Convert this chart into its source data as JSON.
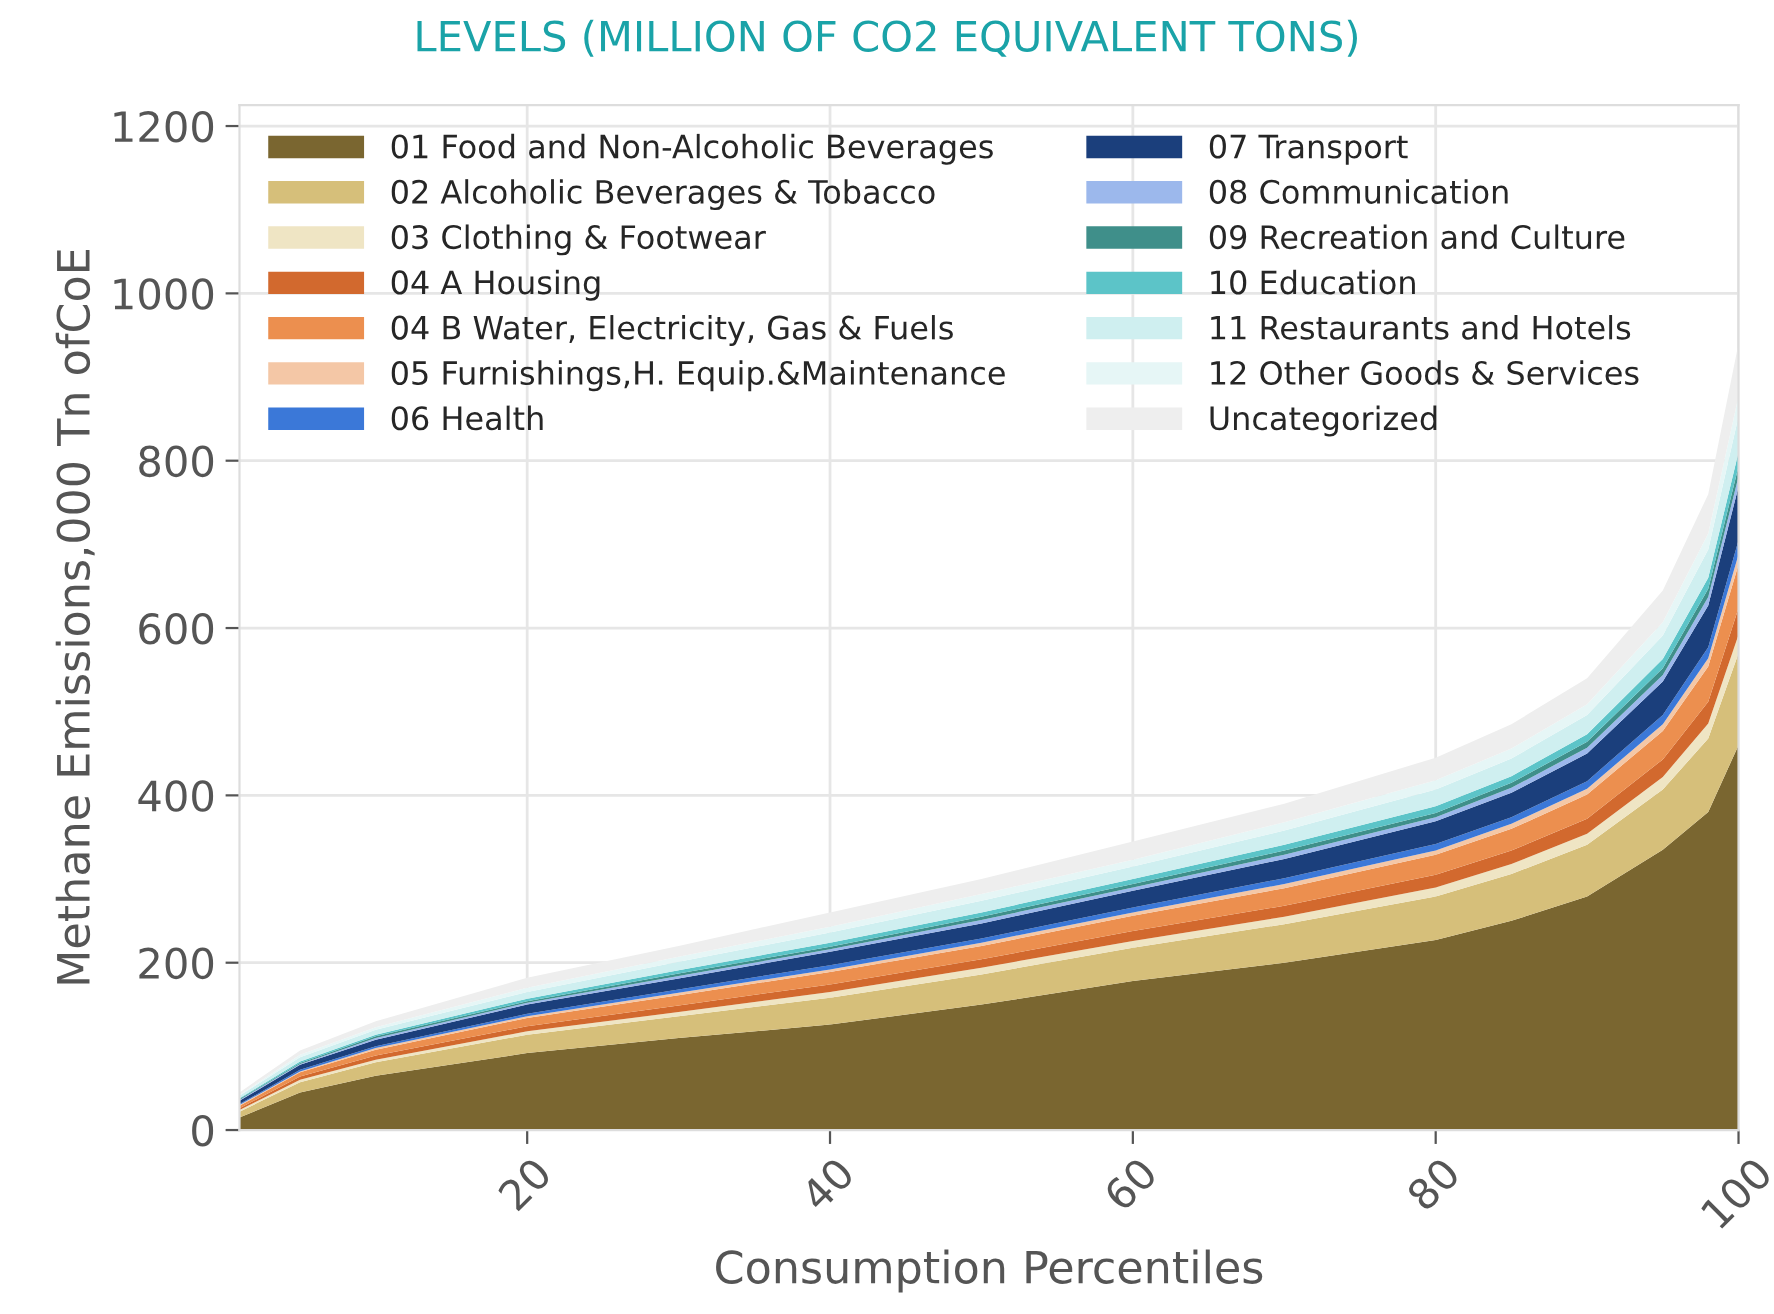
{
  "chart_data": {
    "type": "area",
    "stacked": true,
    "title": "LEVELS (MILLION OF CO2 EQUIVALENT TONS)",
    "xlabel": "Consumption Percentiles",
    "ylabel": "Methane Emissions,000 Tn ofCoE",
    "x": [
      1,
      5,
      10,
      20,
      30,
      40,
      50,
      60,
      70,
      80,
      85,
      90,
      95,
      98,
      100
    ],
    "xlim": [
      1,
      100
    ],
    "xticks": [
      20,
      40,
      60,
      80,
      100
    ],
    "ylim": [
      0,
      1225
    ],
    "yticks": [
      0,
      200,
      400,
      600,
      800,
      1000,
      1200
    ],
    "grid": true,
    "legend": "top left",
    "series": [
      {
        "name": "01 Food and Non-Alcoholic Beverages",
        "color": "#7a6630",
        "values": [
          15,
          45,
          65,
          92,
          110,
          126,
          150,
          178,
          200,
          227,
          250,
          279,
          335,
          380,
          460
        ]
      },
      {
        "name": "02 Alcoholic Beverages & Tobacco",
        "color": "#d6bf7a",
        "values": [
          7,
          12,
          16,
          22,
          26,
          32,
          36,
          40,
          46,
          52,
          56,
          62,
          72,
          88,
          110
        ]
      },
      {
        "name": "03 Clothing & Footwear",
        "color": "#efe5c4",
        "values": [
          2,
          3,
          3,
          4,
          5,
          7,
          8,
          8,
          9,
          11,
          12,
          13,
          15,
          18,
          22
        ]
      },
      {
        "name": "04 A Housing",
        "color": "#d2692e",
        "values": [
          2,
          4,
          5,
          6,
          8,
          9,
          10,
          12,
          13,
          15,
          16,
          18,
          21,
          26,
          32
        ]
      },
      {
        "name": "04 B Water, Electricity, Gas & Fuels",
        "color": "#ec8f4f",
        "values": [
          3,
          5,
          7,
          10,
          12,
          15,
          16,
          18,
          21,
          24,
          26,
          29,
          34,
          42,
          52
        ]
      },
      {
        "name": "05 Furnishings,H. Equip.&Maintenance",
        "color": "#f4c7a6",
        "values": [
          1,
          1,
          2,
          2,
          3,
          3,
          4,
          4,
          5,
          5,
          6,
          7,
          8,
          10,
          12
        ]
      },
      {
        "name": "06 Health",
        "color": "#3b78d8",
        "values": [
          1,
          2,
          2,
          3,
          4,
          5,
          5,
          6,
          7,
          8,
          8,
          9,
          11,
          13,
          17
        ]
      },
      {
        "name": "07 Transport",
        "color": "#1b3f7c",
        "values": [
          4,
          6,
          8,
          11,
          13,
          16,
          18,
          20,
          23,
          27,
          29,
          33,
          40,
          50,
          64
        ]
      },
      {
        "name": "08 Communication",
        "color": "#9cb8ec",
        "values": [
          1,
          1,
          2,
          2,
          3,
          3,
          4,
          4,
          5,
          5,
          6,
          7,
          8,
          10,
          12
        ]
      },
      {
        "name": "09 Recreation and Culture",
        "color": "#3f8f8a",
        "values": [
          1,
          1,
          2,
          2,
          3,
          3,
          4,
          4,
          5,
          5,
          6,
          7,
          8,
          10,
          12
        ]
      },
      {
        "name": "10 Education",
        "color": "#5cc4c8",
        "values": [
          1,
          2,
          2,
          3,
          4,
          5,
          5,
          6,
          7,
          8,
          8,
          9,
          11,
          13,
          17
        ]
      },
      {
        "name": "11 Restaurants and Hotels",
        "color": "#cfeff0",
        "values": [
          3,
          5,
          6,
          8,
          10,
          12,
          14,
          15,
          17,
          20,
          21,
          23,
          28,
          34,
          43
        ]
      },
      {
        "name": "12 Other Goods & Services",
        "color": "#e6f6f6",
        "values": [
          1,
          3,
          3,
          5,
          6,
          7,
          8,
          8,
          10,
          11,
          12,
          13,
          16,
          19,
          24
        ]
      },
      {
        "name": "Uncategorized",
        "color": "#eeeeee",
        "values": [
          3,
          5,
          7,
          12,
          13,
          17,
          18,
          22,
          22,
          27,
          29,
          31,
          38,
          47,
          63
        ]
      }
    ]
  }
}
